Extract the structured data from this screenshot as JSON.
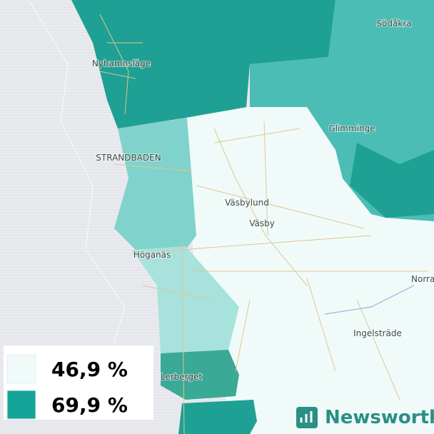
{
  "places": [
    "Södåkra",
    "Nyhamnsläge",
    "Glimminge",
    "STRANDBADEN",
    "Väsbylund",
    "Väsby",
    "Höganäs",
    "Norra",
    "Ingelsträde",
    "Lerberget"
  ],
  "legend": [
    {
      "label": "46,9 %",
      "color": "#f0fbf9"
    },
    {
      "label": "69,9 %",
      "color": "#14a598"
    }
  ],
  "brand": "Newsworthy"
}
